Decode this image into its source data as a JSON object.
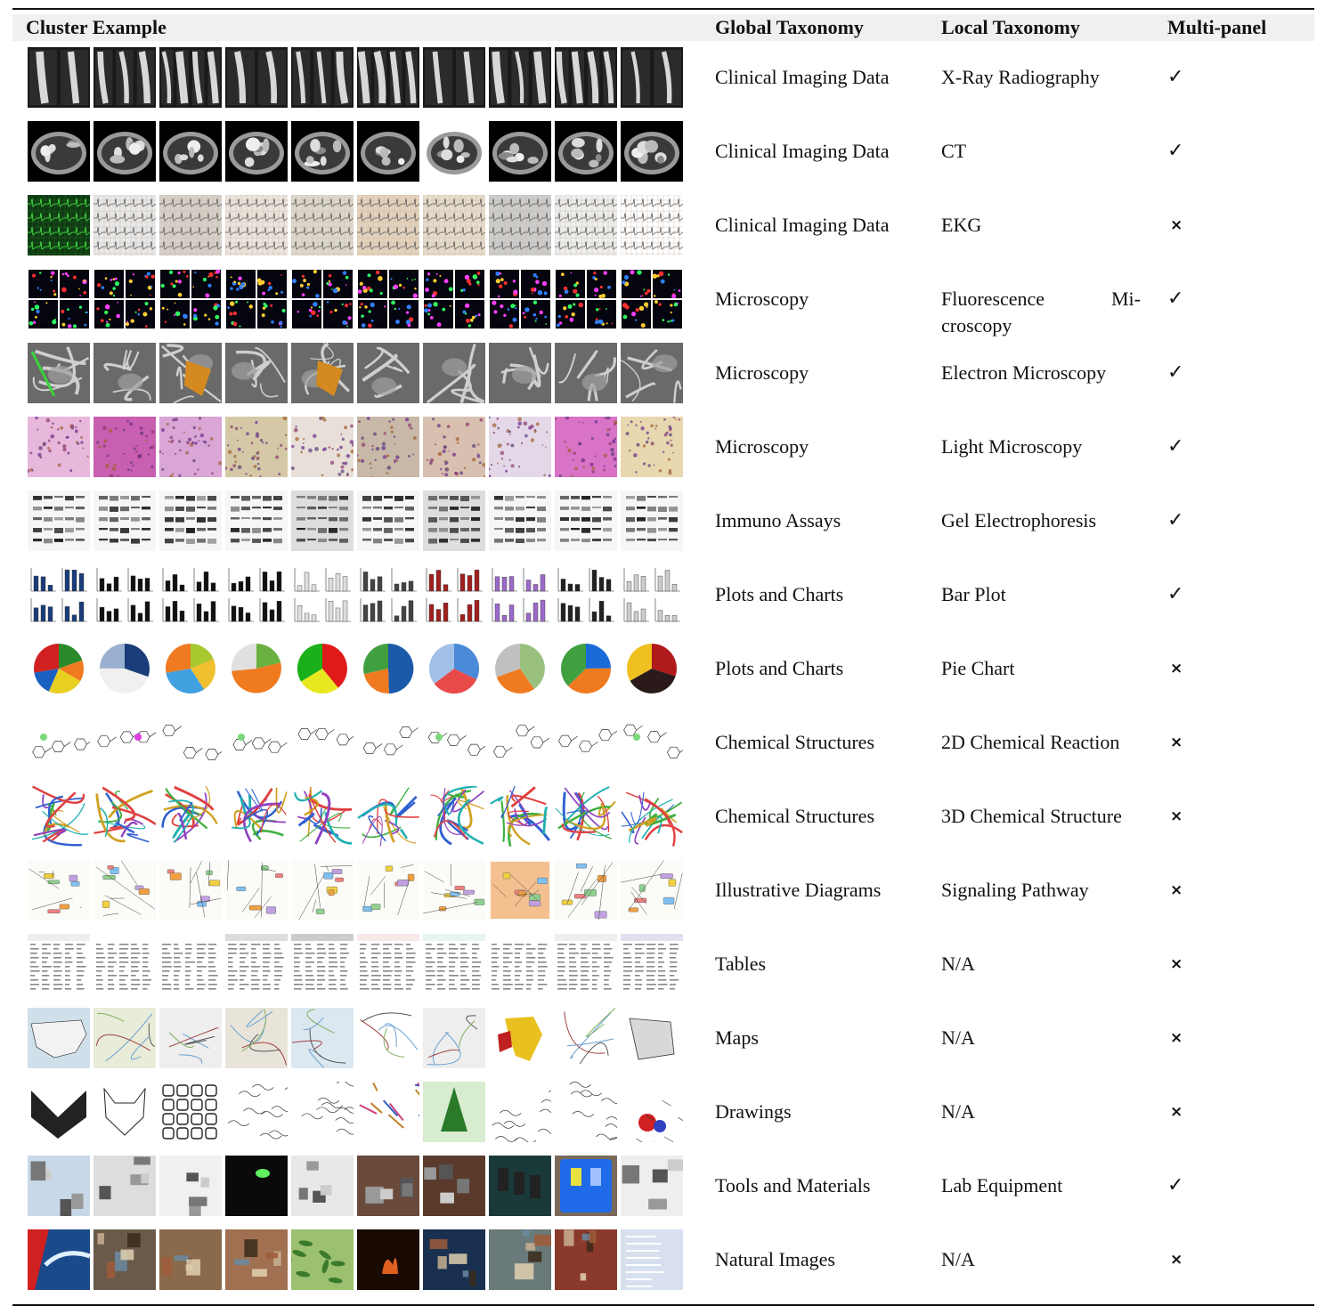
{
  "table": {
    "headers": {
      "cluster": "Cluster Example",
      "global": "Global Taxonomy",
      "local": "Local Taxonomy",
      "multipanel": "Multi-panel"
    },
    "rows": [
      {
        "global": "Clinical Imaging Data",
        "local": "X-Ray Radiography",
        "multipanel": "✓",
        "style": "xray"
      },
      {
        "global": "Clinical Imaging Data",
        "local": "CT",
        "multipanel": "✓",
        "style": "ct"
      },
      {
        "global": "Clinical Imaging Data",
        "local": "EKG",
        "multipanel": "×",
        "style": "ekg"
      },
      {
        "global": "Microscopy",
        "local_line1": "Fluorescence Mi-",
        "local_line2": "croscopy",
        "multipanel": "✓",
        "style": "fluor"
      },
      {
        "global": "Microscopy",
        "local": "Electron Microscopy",
        "multipanel": "✓",
        "style": "em"
      },
      {
        "global": "Microscopy",
        "local": "Light Microscopy",
        "multipanel": "✓",
        "style": "light"
      },
      {
        "global": "Immuno Assays",
        "local": "Gel Electrophoresis",
        "multipanel": "✓",
        "style": "gel"
      },
      {
        "global": "Plots and Charts",
        "local": "Bar Plot",
        "multipanel": "✓",
        "style": "bar"
      },
      {
        "global": "Plots and Charts",
        "local": "Pie Chart",
        "multipanel": "×",
        "style": "pie"
      },
      {
        "global": "Chemical Structures",
        "local": "2D Chemical Reaction",
        "multipanel": "×",
        "style": "chem2d"
      },
      {
        "global": "Chemical Structures",
        "local": "3D Chemical Structure",
        "multipanel": "×",
        "style": "chem3d"
      },
      {
        "global": "Illustrative Diagrams",
        "local": "Signaling Pathway",
        "multipanel": "×",
        "style": "pathway"
      },
      {
        "global": "Tables",
        "local": "N/A",
        "multipanel": "×",
        "style": "tables"
      },
      {
        "global": "Maps",
        "local": "N/A",
        "multipanel": "×",
        "style": "maps"
      },
      {
        "global": "Drawings",
        "local": "N/A",
        "multipanel": "×",
        "style": "drawings"
      },
      {
        "global": "Tools and Materials",
        "local": "Lab Equipment",
        "multipanel": "✓",
        "style": "lab"
      },
      {
        "global": "Natural Images",
        "local": "N/A",
        "multipanel": "×",
        "style": "natural"
      }
    ]
  }
}
